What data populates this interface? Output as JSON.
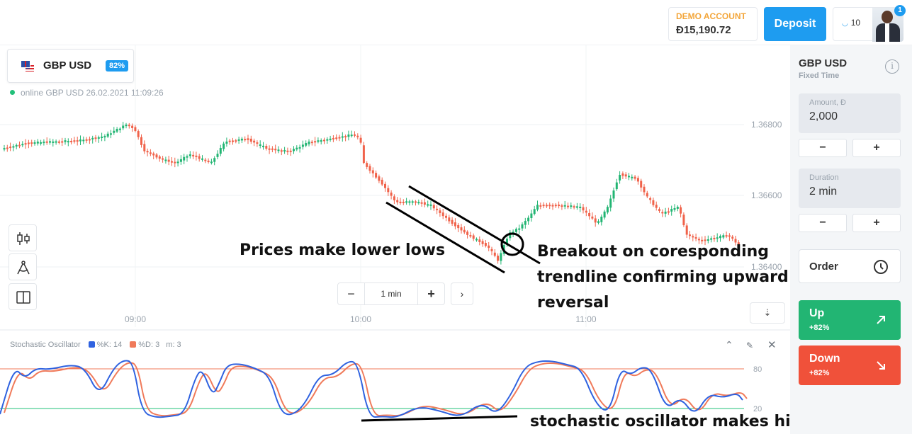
{
  "header": {
    "account_type": "DEMO ACCOUNT",
    "balance": "Đ15,190.72",
    "deposit_label": "Deposit",
    "level": "10",
    "notification_count": "1"
  },
  "asset": {
    "name": "GBP USD",
    "payout": "82%",
    "status": "online GBP USD  26.02.2021 11:09:26"
  },
  "chart": {
    "type": "candlestick",
    "price_axis": [
      "1.36800",
      "1.36600",
      "1.36400"
    ],
    "time_axis": [
      "09:00",
      "10:00",
      "11:00"
    ],
    "timeframe": "1 min",
    "timeframe_minus": "−",
    "timeframe_plus": "+",
    "next_icon": "chevron-right-icon",
    "colors": {
      "up": "#22b573",
      "down": "#f0624a"
    }
  },
  "oscillator": {
    "name": "Stochastic Oscillator",
    "k_label": "%K: 14",
    "d_label": "%D: 3",
    "m_label": "m: 3",
    "levels": [
      "80",
      "20"
    ],
    "colors": {
      "k": "#2f62e0",
      "d": "#f07a5a",
      "upper": "#f07a5a",
      "lower": "#22c07a"
    }
  },
  "annotations": {
    "lower_lows": "Prices make lower lows",
    "breakout": [
      "Breakout on coresponding",
      "trendline confirming upward",
      "reversal"
    ],
    "higher_lows": "stochastic oscillator makes higher lows."
  },
  "panel": {
    "asset": "GBP USD",
    "mode": "Fixed Time",
    "amount_label": "Amount, Đ",
    "amount_value": "2,000",
    "duration_label": "Duration",
    "duration_value": "2 min",
    "minus": "−",
    "plus": "+",
    "order_label": "Order",
    "up_label": "Up",
    "up_payout": "+82%",
    "down_label": "Down",
    "down_payout": "+82%",
    "up_color": "#22b573",
    "down_color": "#f0513a"
  }
}
